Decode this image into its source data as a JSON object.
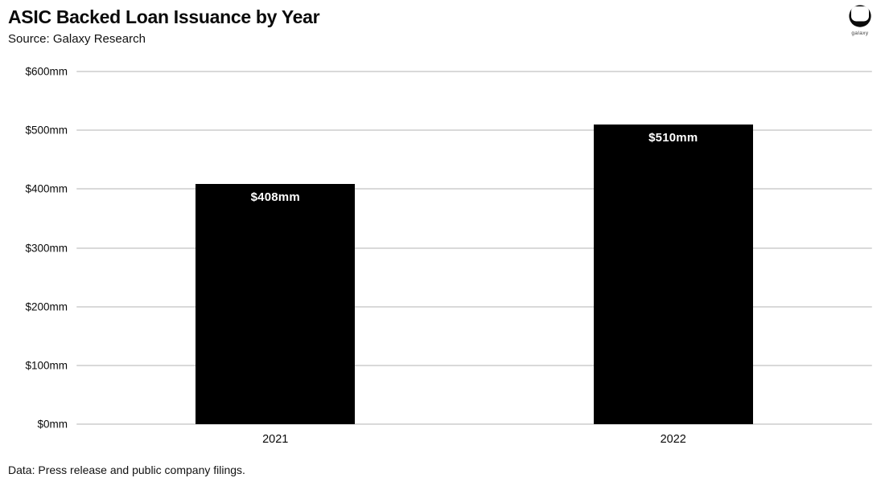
{
  "header": {
    "title": "ASIC Backed Loan Issuance by Year",
    "subtitle": "Source: Galaxy Research"
  },
  "logo": {
    "label": "galaxy"
  },
  "footer": {
    "note": "Data: Press release and public company filings."
  },
  "colors": {
    "bar": "#000000",
    "gridline": "#d9d9d9",
    "bar_label": "#ffffff",
    "text": "#000000"
  },
  "chart_data": {
    "type": "bar",
    "title": "ASIC Backed Loan Issuance by Year",
    "subtitle": "Source: Galaxy Research",
    "categories": [
      "2021",
      "2022"
    ],
    "values": [
      408,
      510
    ],
    "value_labels": [
      "$408mm",
      "$510mm"
    ],
    "xlabel": "",
    "ylabel": "",
    "ylim": [
      0,
      600
    ],
    "ytick_step": 100,
    "ytick_labels": [
      "$0mm",
      "$100mm",
      "$200mm",
      "$300mm",
      "$400mm",
      "$500mm",
      "$600mm"
    ],
    "grid": true,
    "legend": false,
    "bar_band_fraction": 0.4,
    "annotation": "Data: Press release and public company filings."
  }
}
